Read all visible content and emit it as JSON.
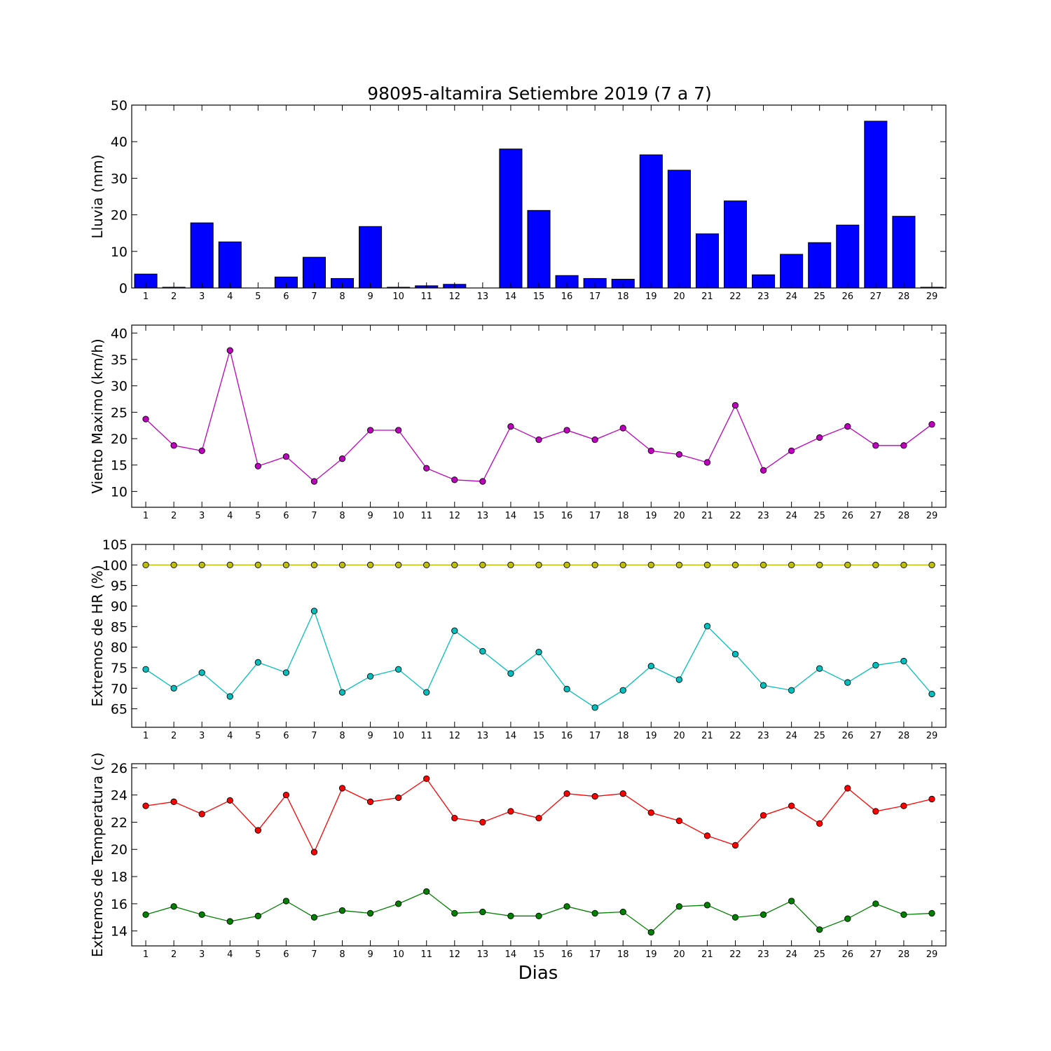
{
  "title": "98095-altamira Setiembre 2019  (7 a 7)",
  "xlabel": "Dias",
  "days": [
    1,
    2,
    3,
    4,
    5,
    6,
    7,
    8,
    9,
    10,
    11,
    12,
    13,
    14,
    15,
    16,
    17,
    18,
    19,
    20,
    21,
    22,
    23,
    24,
    25,
    26,
    27,
    28,
    29
  ],
  "colors": {
    "rain": "#0000ff",
    "wind": "#bf00bf",
    "hr_max": "#bfbf00",
    "hr_min": "#00bfbf",
    "temp_max": "#ff0000",
    "temp_min": "#008000"
  },
  "chart_data": [
    {
      "type": "bar",
      "ylabel": "Lluvia (mm)",
      "ylim": [
        0,
        50
      ],
      "yticks": [
        0,
        10,
        20,
        30,
        40,
        50
      ],
      "series": [
        {
          "values": [
            3.8,
            0.2,
            17.8,
            12.6,
            0.0,
            3.0,
            8.4,
            2.6,
            16.8,
            0.2,
            0.6,
            1.0,
            0.0,
            38.0,
            21.2,
            3.4,
            2.6,
            2.4,
            36.4,
            32.2,
            14.8,
            23.8,
            3.6,
            9.2,
            12.4,
            17.2,
            45.6,
            19.6,
            0.2
          ]
        }
      ]
    },
    {
      "type": "line",
      "ylabel": "Viento Maximo (km/h)",
      "ylim": [
        7,
        41.5
      ],
      "yticks": [
        10,
        15,
        20,
        25,
        30,
        35,
        40
      ],
      "series": [
        {
          "values": [
            23.7,
            18.7,
            17.7,
            36.7,
            14.8,
            16.6,
            11.9,
            16.2,
            21.6,
            21.6,
            14.4,
            12.2,
            11.9,
            22.3,
            19.8,
            21.6,
            19.8,
            22.0,
            17.7,
            17.0,
            15.5,
            26.3,
            14.0,
            17.7,
            20.2,
            22.3,
            18.7,
            18.7,
            22.7
          ]
        }
      ]
    },
    {
      "type": "line",
      "ylabel": "Extremos de HR (%)",
      "ylim": [
        60.5,
        105
      ],
      "yticks": [
        65,
        70,
        75,
        80,
        85,
        90,
        95,
        100,
        105
      ],
      "series": [
        {
          "values": [
            100,
            100,
            100,
            100,
            100,
            100,
            100,
            100,
            100,
            100,
            100,
            100,
            100,
            100,
            100,
            100,
            100,
            100,
            100,
            100,
            100,
            100,
            100,
            100,
            100,
            100,
            100,
            100,
            100
          ]
        },
        {
          "values": [
            74.6,
            70.0,
            73.8,
            68.0,
            76.3,
            73.8,
            88.8,
            69.0,
            72.9,
            74.6,
            69.0,
            84.0,
            79.0,
            73.6,
            78.8,
            69.8,
            65.3,
            69.5,
            75.4,
            72.1,
            85.1,
            78.3,
            70.7,
            69.5,
            74.8,
            71.4,
            75.6,
            76.6,
            68.6
          ]
        }
      ]
    },
    {
      "type": "line",
      "ylabel": "Extremos de Temperatura (c)",
      "ylim": [
        12.9,
        26.3
      ],
      "yticks": [
        14,
        16,
        18,
        20,
        22,
        24,
        26
      ],
      "series": [
        {
          "values": [
            23.2,
            23.5,
            22.6,
            23.6,
            21.4,
            24.0,
            19.8,
            24.5,
            23.5,
            23.8,
            25.2,
            22.3,
            22.0,
            22.8,
            22.3,
            24.1,
            23.9,
            24.1,
            22.7,
            22.1,
            21.0,
            20.3,
            22.5,
            23.2,
            21.9,
            24.5,
            22.8,
            23.2,
            23.7
          ]
        },
        {
          "values": [
            15.2,
            15.8,
            15.2,
            14.7,
            15.1,
            16.2,
            15.0,
            15.5,
            15.3,
            16.0,
            16.9,
            15.3,
            15.4,
            15.1,
            15.1,
            15.8,
            15.3,
            15.4,
            13.9,
            15.8,
            15.9,
            15.0,
            15.2,
            16.2,
            14.1,
            14.9,
            16.0,
            15.2,
            15.3
          ]
        }
      ]
    }
  ]
}
